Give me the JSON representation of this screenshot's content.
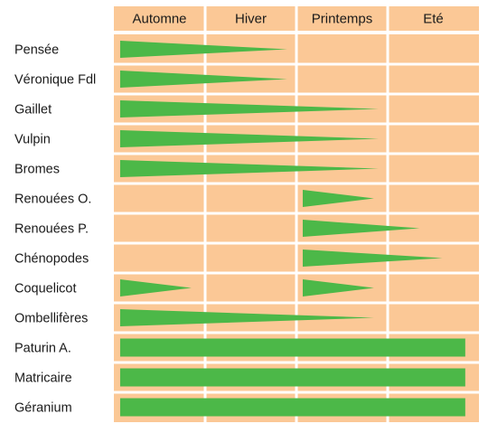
{
  "chart_data": {
    "type": "timeline",
    "title": "",
    "columns": [
      "Automne",
      "Hiver",
      "Printemps",
      "Eté"
    ],
    "rows": [
      {
        "label": "Pensée",
        "shape": "wedge",
        "segments": [
          [
            0,
            1.9
          ]
        ]
      },
      {
        "label": "Véronique Fdl",
        "shape": "wedge",
        "segments": [
          [
            0,
            1.9
          ]
        ]
      },
      {
        "label": "Gaillet",
        "shape": "wedge",
        "segments": [
          [
            0,
            2.9
          ]
        ]
      },
      {
        "label": "Vulpin",
        "shape": "wedge",
        "segments": [
          [
            0,
            2.9
          ]
        ]
      },
      {
        "label": "Bromes",
        "shape": "wedge",
        "segments": [
          [
            0,
            2.9
          ]
        ]
      },
      {
        "label": "Renouées O.",
        "shape": "wedge",
        "segments": [
          [
            2.0,
            2.85
          ]
        ]
      },
      {
        "label": "Renouées P.",
        "shape": "wedge",
        "segments": [
          [
            2.0,
            3.35
          ]
        ]
      },
      {
        "label": "Chénopodes",
        "shape": "wedge",
        "segments": [
          [
            2.0,
            3.6
          ]
        ]
      },
      {
        "label": "Coquelicot",
        "shape": "wedge",
        "segments": [
          [
            0,
            0.85
          ],
          [
            2.0,
            2.85
          ]
        ]
      },
      {
        "label": "Ombellifères",
        "shape": "wedge",
        "segments": [
          [
            0,
            2.85
          ]
        ]
      },
      {
        "label": "Paturin A.",
        "shape": "bar",
        "segments": [
          [
            0,
            3.85
          ]
        ]
      },
      {
        "label": "Matricaire",
        "shape": "bar",
        "segments": [
          [
            0,
            3.85
          ]
        ]
      },
      {
        "label": "Géranium",
        "shape": "bar",
        "segments": [
          [
            0,
            3.85
          ]
        ]
      }
    ]
  },
  "colors": {
    "background": "#ffffff",
    "cell": "#fbc896",
    "gridline": "#ffffff",
    "fill": "#4cb848",
    "text": "#1a1a1a"
  }
}
